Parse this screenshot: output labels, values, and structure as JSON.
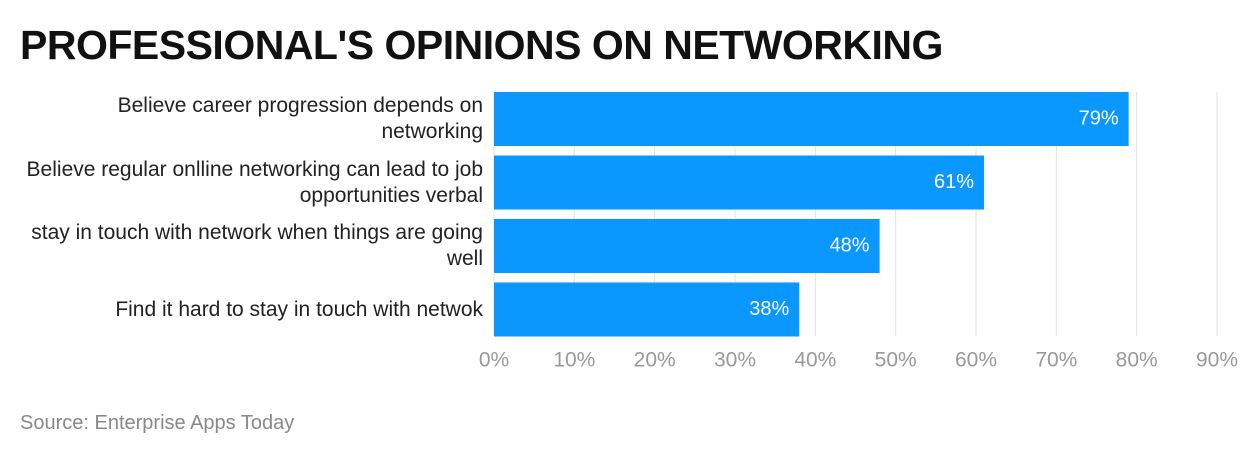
{
  "chart_data": {
    "type": "hbar",
    "title": "PROFESSIONAL'S OPINIONS ON NETWORKING",
    "source": "Source: Enterprise Apps Today",
    "categories": [
      "Believe career progression depends on networking",
      "Believe regular onlline networking can lead to job opportunities verbal",
      "stay in touch with network when things are going well",
      "Find it hard to stay in touch with netwok"
    ],
    "values": [
      79,
      61,
      48,
      38
    ],
    "value_labels": [
      "79%",
      "61%",
      "48%",
      "38%"
    ],
    "color": "#0a98fe",
    "xlim": [
      0,
      90
    ],
    "xticks": [
      {
        "value": 0,
        "label": "0%"
      },
      {
        "value": 10,
        "label": "10%"
      },
      {
        "value": 20,
        "label": "20%"
      },
      {
        "value": 30,
        "label": "30%"
      },
      {
        "value": 40,
        "label": "40%"
      },
      {
        "value": 50,
        "label": "50%"
      },
      {
        "value": 60,
        "label": "60%"
      },
      {
        "value": 70,
        "label": "70%"
      },
      {
        "value": 80,
        "label": "80%"
      },
      {
        "value": 90,
        "label": "90%"
      }
    ],
    "grid": true
  }
}
